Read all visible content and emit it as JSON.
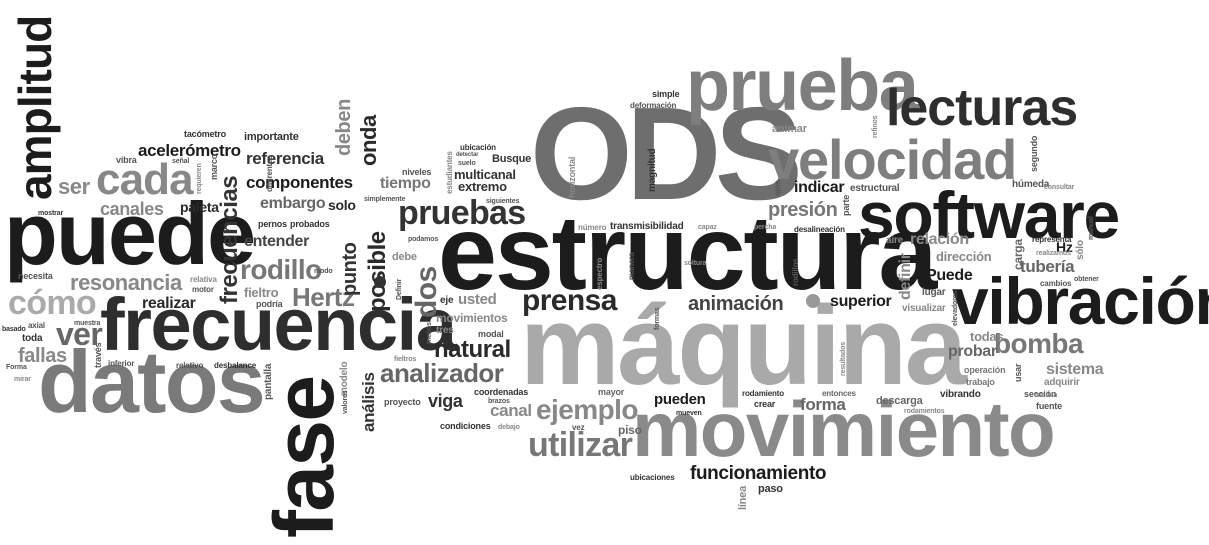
{
  "colors": {
    "black": "#1a1a1a",
    "dark": "#333333",
    "mid": "#5a5a5a",
    "gray": "#858585",
    "light": "#a6a6a6",
    "pale": "#c4c4c4"
  },
  "words": {
    "ods": "ODS",
    "estructura": "estructura",
    "maquina": "máquina",
    "puede": "puede",
    "frecuencia": "frecuencia",
    "datos": "datos",
    "fase": "fase",
    "movimiento": "movimiento",
    "vibracion": "vibración",
    "software": "software",
    "prueba": "prueba",
    "velocidad": "velocidad",
    "lecturas": "lecturas",
    "amplitud": "amplitud",
    "cada": "cada",
    "pruebas": "pruebas",
    "prensa": "prensa",
    "utilizar": "utilizar",
    "ejemplo": "ejemplo",
    "analizador": "analizador",
    "bomba": "bomba",
    "rodillo": "rodillo",
    "componentes": "componentes",
    "referencia": "referencia",
    "acelerometro": "acelerómetro",
    "como": "cómo",
    "resonancia": "resonancia",
    "canales": "canales",
    "ser": "ser",
    "ver": "ver",
    "fallas": "fallas",
    "natural": "natural",
    "hertz": "Hertz",
    "dos": "dos",
    "posible": "posible",
    "punto": "punto",
    "onda": "onda",
    "deben": "deben",
    "frecuencias": "frecuencias",
    "animacion": "animación",
    "funcionamiento": "funcionamiento",
    "presion": "presión",
    "indicar": "indicar",
    "superior": "superior",
    "relacion": "relación",
    "tuberia": "tubería",
    "puede_cap": "Puede",
    "definir": "definir",
    "sistema": "sistema",
    "probar": "probar",
    "todas": "todas",
    "forma": "forma",
    "pueden": "pueden",
    "canal": "canal",
    "viga": "viga",
    "usted": "usted",
    "analisis": "análisis",
    "multicanal": "multicanal",
    "extremo": "extremo",
    "busque": "Busque",
    "tiempo": "tiempo",
    "embargo": "embargo",
    "entender": "entender",
    "solo": "solo",
    "paleta": "paleta",
    "realizar": "realizar",
    "fieltro": "fieltro",
    "importante": "importante",
    "tacometro": "tacómetro",
    "animar": "animar",
    "estructural": "estructural",
    "humeda": "húmeda",
    "lugar": "lugar",
    "descarga": "descarga",
    "vibrando": "vibrando",
    "rodamiento": "rodamiento",
    "piso": "piso",
    "mayor": "mayor",
    "crear": "crear",
    "entonces": "entonces",
    "paso": "paso",
    "linea": "línea",
    "ubicaciones": "ubicaciones",
    "numero": "número",
    "transmisibilidad": "transmisibilidad",
    "desalineacion": "desalineación",
    "direccion": "dirección",
    "carga": "carga",
    "hz": "Hz",
    "representa": "representa",
    "aire": "aire",
    "visualizar": "visualizar",
    "seccion": "sección",
    "fuente": "fuente",
    "adquirir": "adquirir",
    "operacion": "operación",
    "trabajo": "trabajo",
    "usar": "usar",
    "simple": "simple",
    "deformacion": "deformación",
    "magnitud": "magnitud",
    "horizontal": "horizontal",
    "movimientos": "movimientos",
    "eje": "eje",
    "tres": "tres",
    "modal": "modal",
    "modelo": "modelo",
    "coordenadas": "coordenadas",
    "condiciones": "condiciones",
    "proyecto": "proyecto",
    "pantalla": "pantalla",
    "desbalance": "desbalance",
    "relativo": "relativo",
    "inferior": "inferior",
    "traves": "través",
    "motor": "motor",
    "relativa": "relativa",
    "podria": "podría",
    "pernos": "pernos",
    "probados": "probados",
    "diferentes": "diferentes",
    "vibra": "vibra",
    "necesita": "necesita",
    "toda": "toda",
    "axial": "axial",
    "muestra": "muestra",
    "basado": "basado",
    "mostrar": "mostrar",
    "forma_cap": "Forma",
    "debe": "debe",
    "niveles": "niveles",
    "ubicacion": "ubicación",
    "suelo": "suelo",
    "vez": "vez",
    "marco": "marco",
    "estudiantes": "estudiantes",
    "segundo": "segundo",
    "parte": "parte",
    "ojos": "ojos",
    "cambios": "cambios",
    "obtener": "obtener",
    "solo_acc": "sólo",
    "manual": "manual",
    "consultar": "consultar",
    "soltura": "soltura",
    "capaz": "capaz",
    "manera": "manera",
    "espectro": "espectro",
    "rodillos": "rodillos",
    "percha": "percha",
    "mueven": "mueven",
    "debajo": "debajo",
    "siguientes": "siguientes",
    "brazos": "brazos",
    "realizamos": "realizamos",
    "encima": "encima",
    "rodamientos": "rodamientos",
    "resultados": "resultados",
    "podamos": "podamos",
    "definir_cap": "Definir",
    "senal": "señal",
    "simplemente": "simplemente",
    "requieren": "requieren",
    "detectar": "detectar",
    "modo": "modo",
    "mirar": "mirar",
    "formas": "formas",
    "elevadores": "elevadores",
    "refinos": "refinos",
    "valores": "valores",
    "fieltros": "fieltros",
    "menos": "menos"
  }
}
